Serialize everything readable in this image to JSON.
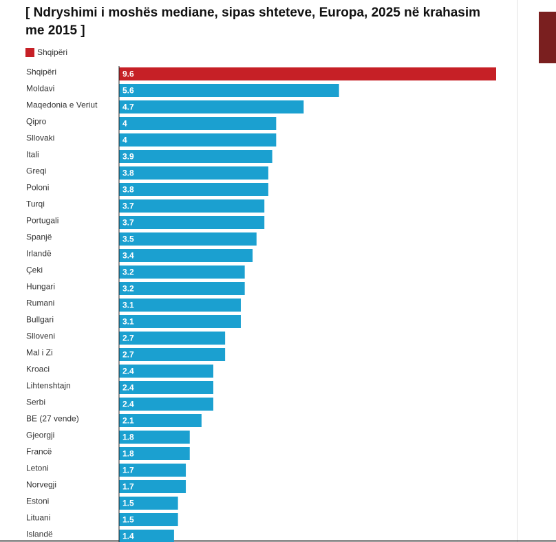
{
  "chart_data": {
    "type": "hbar",
    "title": "[ Ndryshimi i moshës mediane, sipas shteteve, Europa, 2025 në krahasim me 2015 ]",
    "legend": {
      "name": "Shqipëri",
      "color": "#c62026"
    },
    "color": "#1ba0d0",
    "categories": [
      "Shqipëri",
      "Moldavi",
      "Maqedonia e Veriut",
      "Qipro",
      "Sllovaki",
      "Itali",
      "Greqi",
      "Poloni",
      "Turqi",
      "Portugali",
      "Spanjë",
      "Irlandë",
      "Çeki",
      "Hungari",
      "Rumani",
      "Bullgari",
      "Slloveni",
      "Mal i Zi",
      "Kroaci",
      "Lihtenshtajn",
      "Serbi",
      "BE (27 vende)",
      "Gjeorgji",
      "Francë",
      "Letoni",
      "Norvegji",
      "Estoni",
      "Lituani",
      "Islandë"
    ],
    "values": [
      9.6,
      5.6,
      4.7,
      4,
      4,
      3.9,
      3.8,
      3.8,
      3.7,
      3.7,
      3.5,
      3.4,
      3.2,
      3.2,
      3.1,
      3.1,
      2.7,
      2.7,
      2.4,
      2.4,
      2.4,
      2.1,
      1.8,
      1.8,
      1.7,
      1.7,
      1.5,
      1.5,
      1.4
    ]
  }
}
